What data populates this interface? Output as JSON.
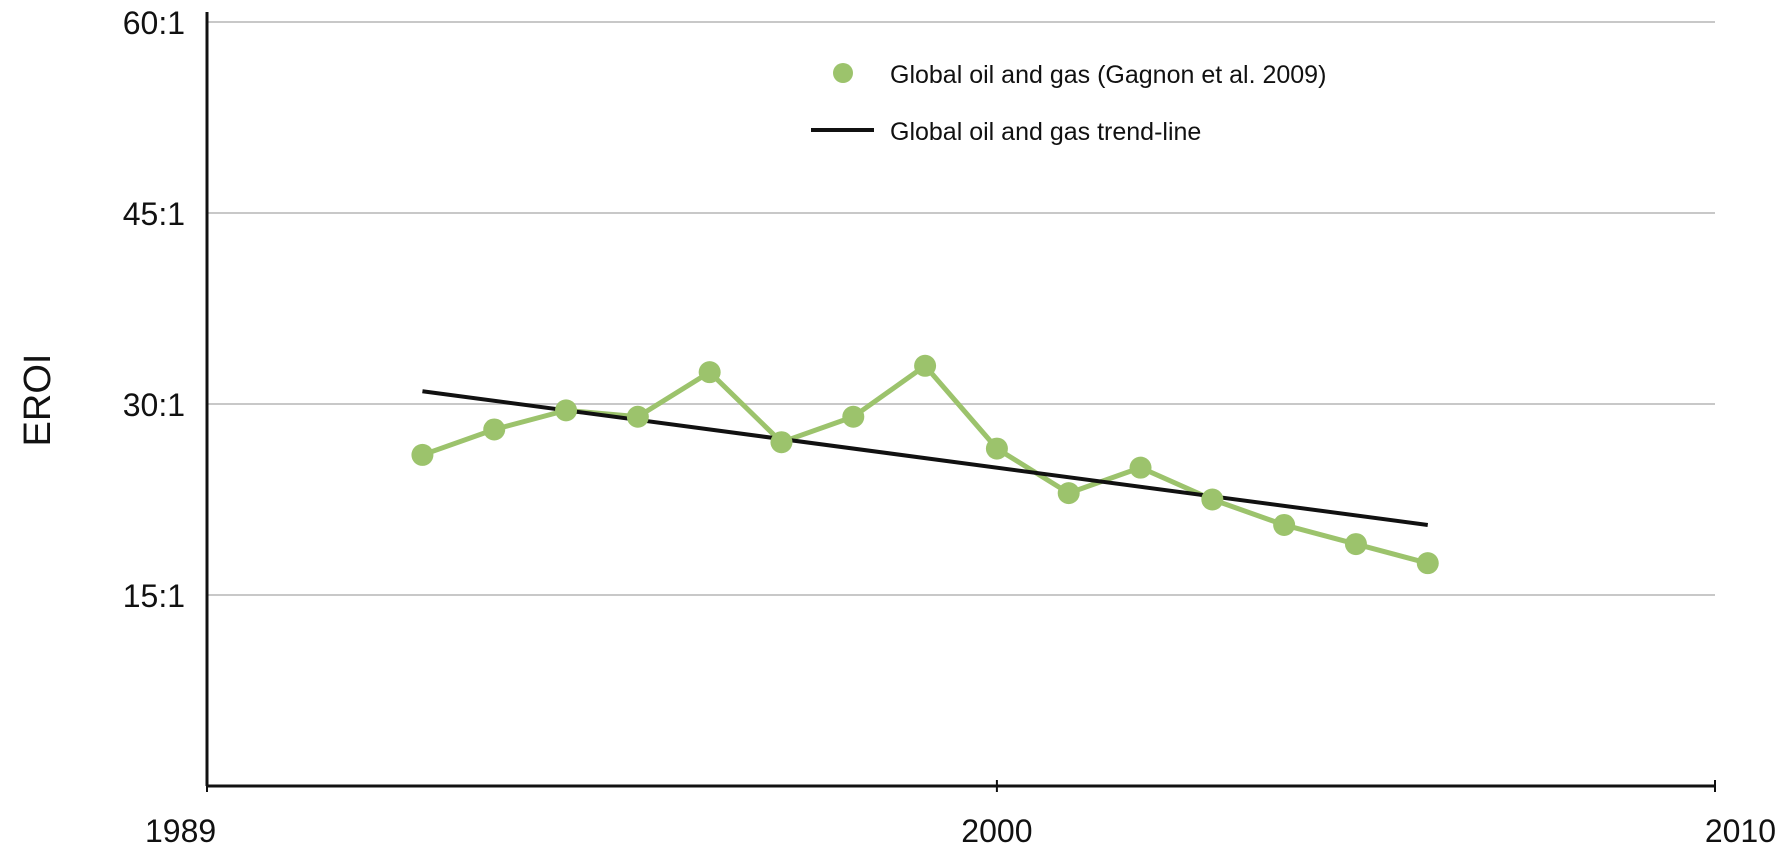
{
  "chart_data": {
    "type": "line",
    "title": "",
    "xlabel": "",
    "ylabel": "EROI",
    "xlim": [
      1989,
      2010
    ],
    "ylim": [
      0,
      60
    ],
    "grid": true,
    "legend_position": "top-right",
    "x_ticks": [
      {
        "value": 1989,
        "label": "1989"
      },
      {
        "value": 2000,
        "label": "2000"
      },
      {
        "value": 2010,
        "label": "2010"
      }
    ],
    "y_ticks": [
      {
        "value": 15,
        "label": "15:1"
      },
      {
        "value": 30,
        "label": "30:1"
      },
      {
        "value": 45,
        "label": "45:1"
      },
      {
        "value": 60,
        "label": "60:1"
      }
    ],
    "series": [
      {
        "name": "Global oil and gas (Gagnon et al. 2009)",
        "color": "#9cc36c",
        "style": "line+markers",
        "x": [
          1992,
          1993,
          1994,
          1995,
          1996,
          1997,
          1998,
          1999,
          2000,
          2001,
          2002,
          2003,
          2004,
          2005,
          2006
        ],
        "y": [
          26,
          28,
          29.5,
          29,
          32.5,
          27,
          29,
          33,
          26.5,
          23,
          25,
          22.5,
          20.5,
          19,
          17.5
        ]
      },
      {
        "name": "Global oil and gas trend-line",
        "color": "#111111",
        "style": "line",
        "x": [
          1992,
          2006
        ],
        "y": [
          31,
          20.5
        ]
      }
    ]
  }
}
